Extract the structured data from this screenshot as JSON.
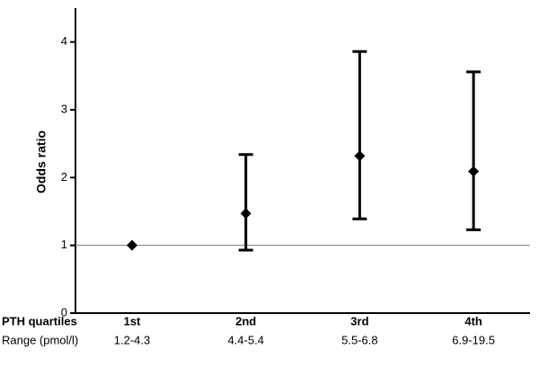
{
  "chart_data": {
    "type": "errorbar",
    "y_label": "Odds ratio",
    "row_labels": [
      "PTH quartiles",
      "Range (pmol/l)"
    ],
    "categories": [
      "1st",
      "2nd",
      "3rd",
      "4th"
    ],
    "ranges": [
      "1.2-4.3",
      "4.4-5.4",
      "5.5-6.8",
      "6.9-19.5"
    ],
    "values": [
      1.0,
      1.47,
      2.32,
      2.09
    ],
    "lower": [
      null,
      0.93,
      1.39,
      1.23
    ],
    "upper": [
      null,
      2.34,
      3.86,
      3.56
    ],
    "reference_line": 1,
    "color": "#000000",
    "ylim": [
      0,
      4.5
    ],
    "yticks": [
      0,
      1,
      2,
      3,
      4
    ]
  }
}
